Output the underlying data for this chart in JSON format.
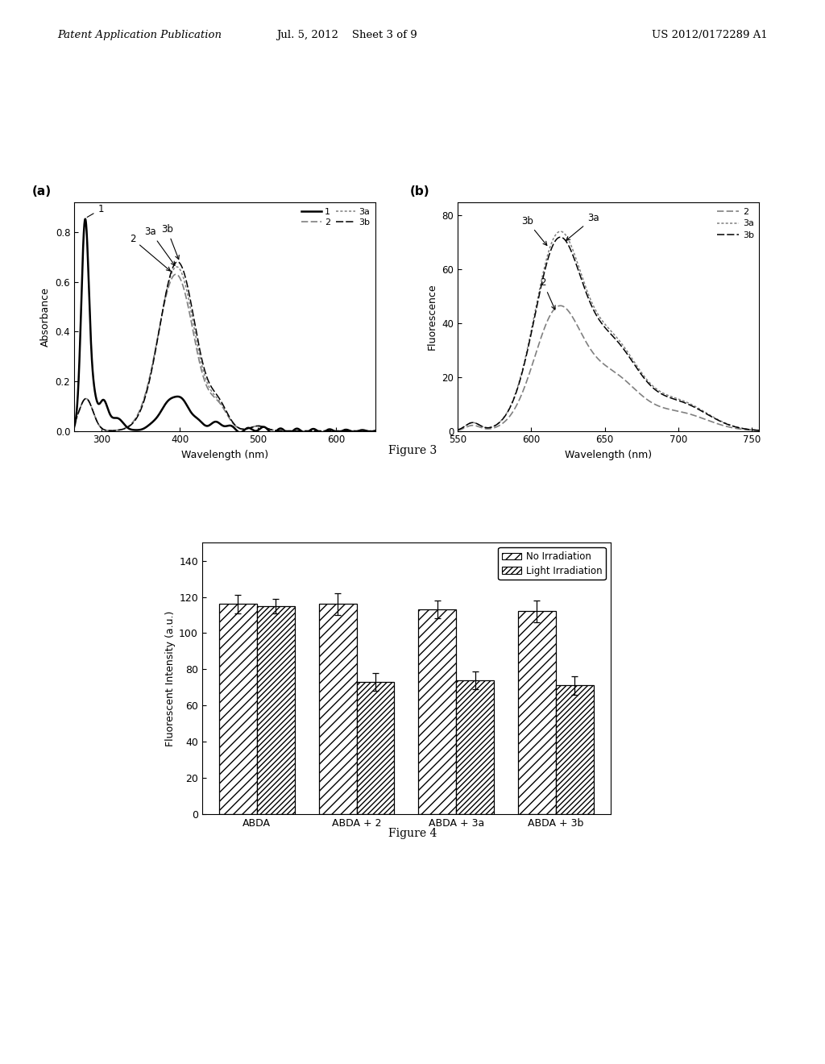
{
  "fig3a": {
    "title": "(a)",
    "xlabel": "Wavelength (nm)",
    "ylabel": "Absorbance",
    "xlim": [
      265,
      650
    ],
    "ylim": [
      0.0,
      0.92
    ],
    "yticks": [
      0.0,
      0.2,
      0.4,
      0.6,
      0.8
    ],
    "xticks": [
      300,
      400,
      500,
      600
    ]
  },
  "fig3b": {
    "title": "(b)",
    "xlabel": "Wavelength (nm)",
    "ylabel": "Fluorescence",
    "xlim": [
      550,
      755
    ],
    "ylim": [
      0,
      85
    ],
    "yticks": [
      0,
      20,
      40,
      60,
      80
    ],
    "xticks": [
      550,
      600,
      650,
      700,
      750
    ]
  },
  "fig4": {
    "ylabel": "Fluorescent Intensity (a.u.)",
    "categories": [
      "ABDA",
      "ABDA + 2",
      "ABDA + 3a",
      "ABDA + 3b"
    ],
    "no_irr_values": [
      116,
      116,
      113,
      112
    ],
    "light_irr_values": [
      115,
      73,
      74,
      71
    ],
    "no_irr_errors": [
      5,
      6,
      5,
      6
    ],
    "light_irr_errors": [
      4,
      5,
      5,
      5
    ],
    "ylim": [
      0,
      150
    ],
    "yticks": [
      0,
      20,
      40,
      60,
      80,
      100,
      120,
      140
    ],
    "legend_no_irr": "No Irradiation",
    "legend_light_irr": "Light Irradiation",
    "figure_label": "Figure 4"
  },
  "figure3_label": "Figure 3",
  "header_left": "Patent Application Publication",
  "header_mid": "Jul. 5, 2012    Sheet 3 of 9",
  "header_right": "US 2012/0172289 A1",
  "bg_color": "#ffffff"
}
